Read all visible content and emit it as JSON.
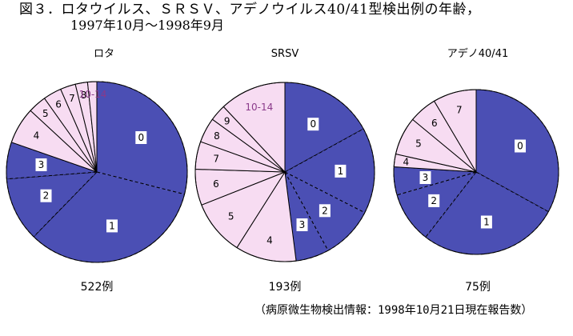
{
  "title": "図３．ロタウイルス、ＳＲＳＶ、アデノウイルス40/41型検出例の年齢，",
  "subtitle": "1997年10月〜1998年9月",
  "source": "（病原微生物検出情報：1998年10月21日現在報告数）",
  "colors": {
    "blue": "#4b4fb4",
    "pink": "#f7dcf2",
    "line": "#000000"
  },
  "chart_data": [
    {
      "type": "pie",
      "title": "ロタ",
      "count_label": "522例",
      "categories": [
        "0",
        "1",
        "2",
        "3",
        "4",
        "5",
        "6",
        "7",
        "8",
        "10-14"
      ],
      "values": [
        26.5,
        30.5,
        10.5,
        6.0,
        6.0,
        3.0,
        3.0,
        2.5,
        2.0,
        1.5
      ],
      "highlight_from": 4
    },
    {
      "type": "pie",
      "title": "SRSV",
      "count_label": "193例",
      "categories": [
        "0",
        "1",
        "2",
        "3",
        "4",
        "5",
        "6",
        "7",
        "8",
        "9",
        "10-14"
      ],
      "values": [
        17.0,
        15.5,
        9.5,
        6.0,
        11.0,
        10.0,
        6.5,
        5.0,
        4.5,
        3.0,
        12.0
      ],
      "highlight_from": 4
    },
    {
      "type": "pie",
      "title": "アデノ40/41",
      "count_label": "75例",
      "categories": [
        "0",
        "1",
        "2",
        "3",
        "4",
        "5",
        "6",
        "7"
      ],
      "values": [
        33.0,
        27.5,
        10.0,
        5.5,
        2.5,
        7.5,
        5.5,
        8.5
      ],
      "highlight_from": 4
    }
  ]
}
